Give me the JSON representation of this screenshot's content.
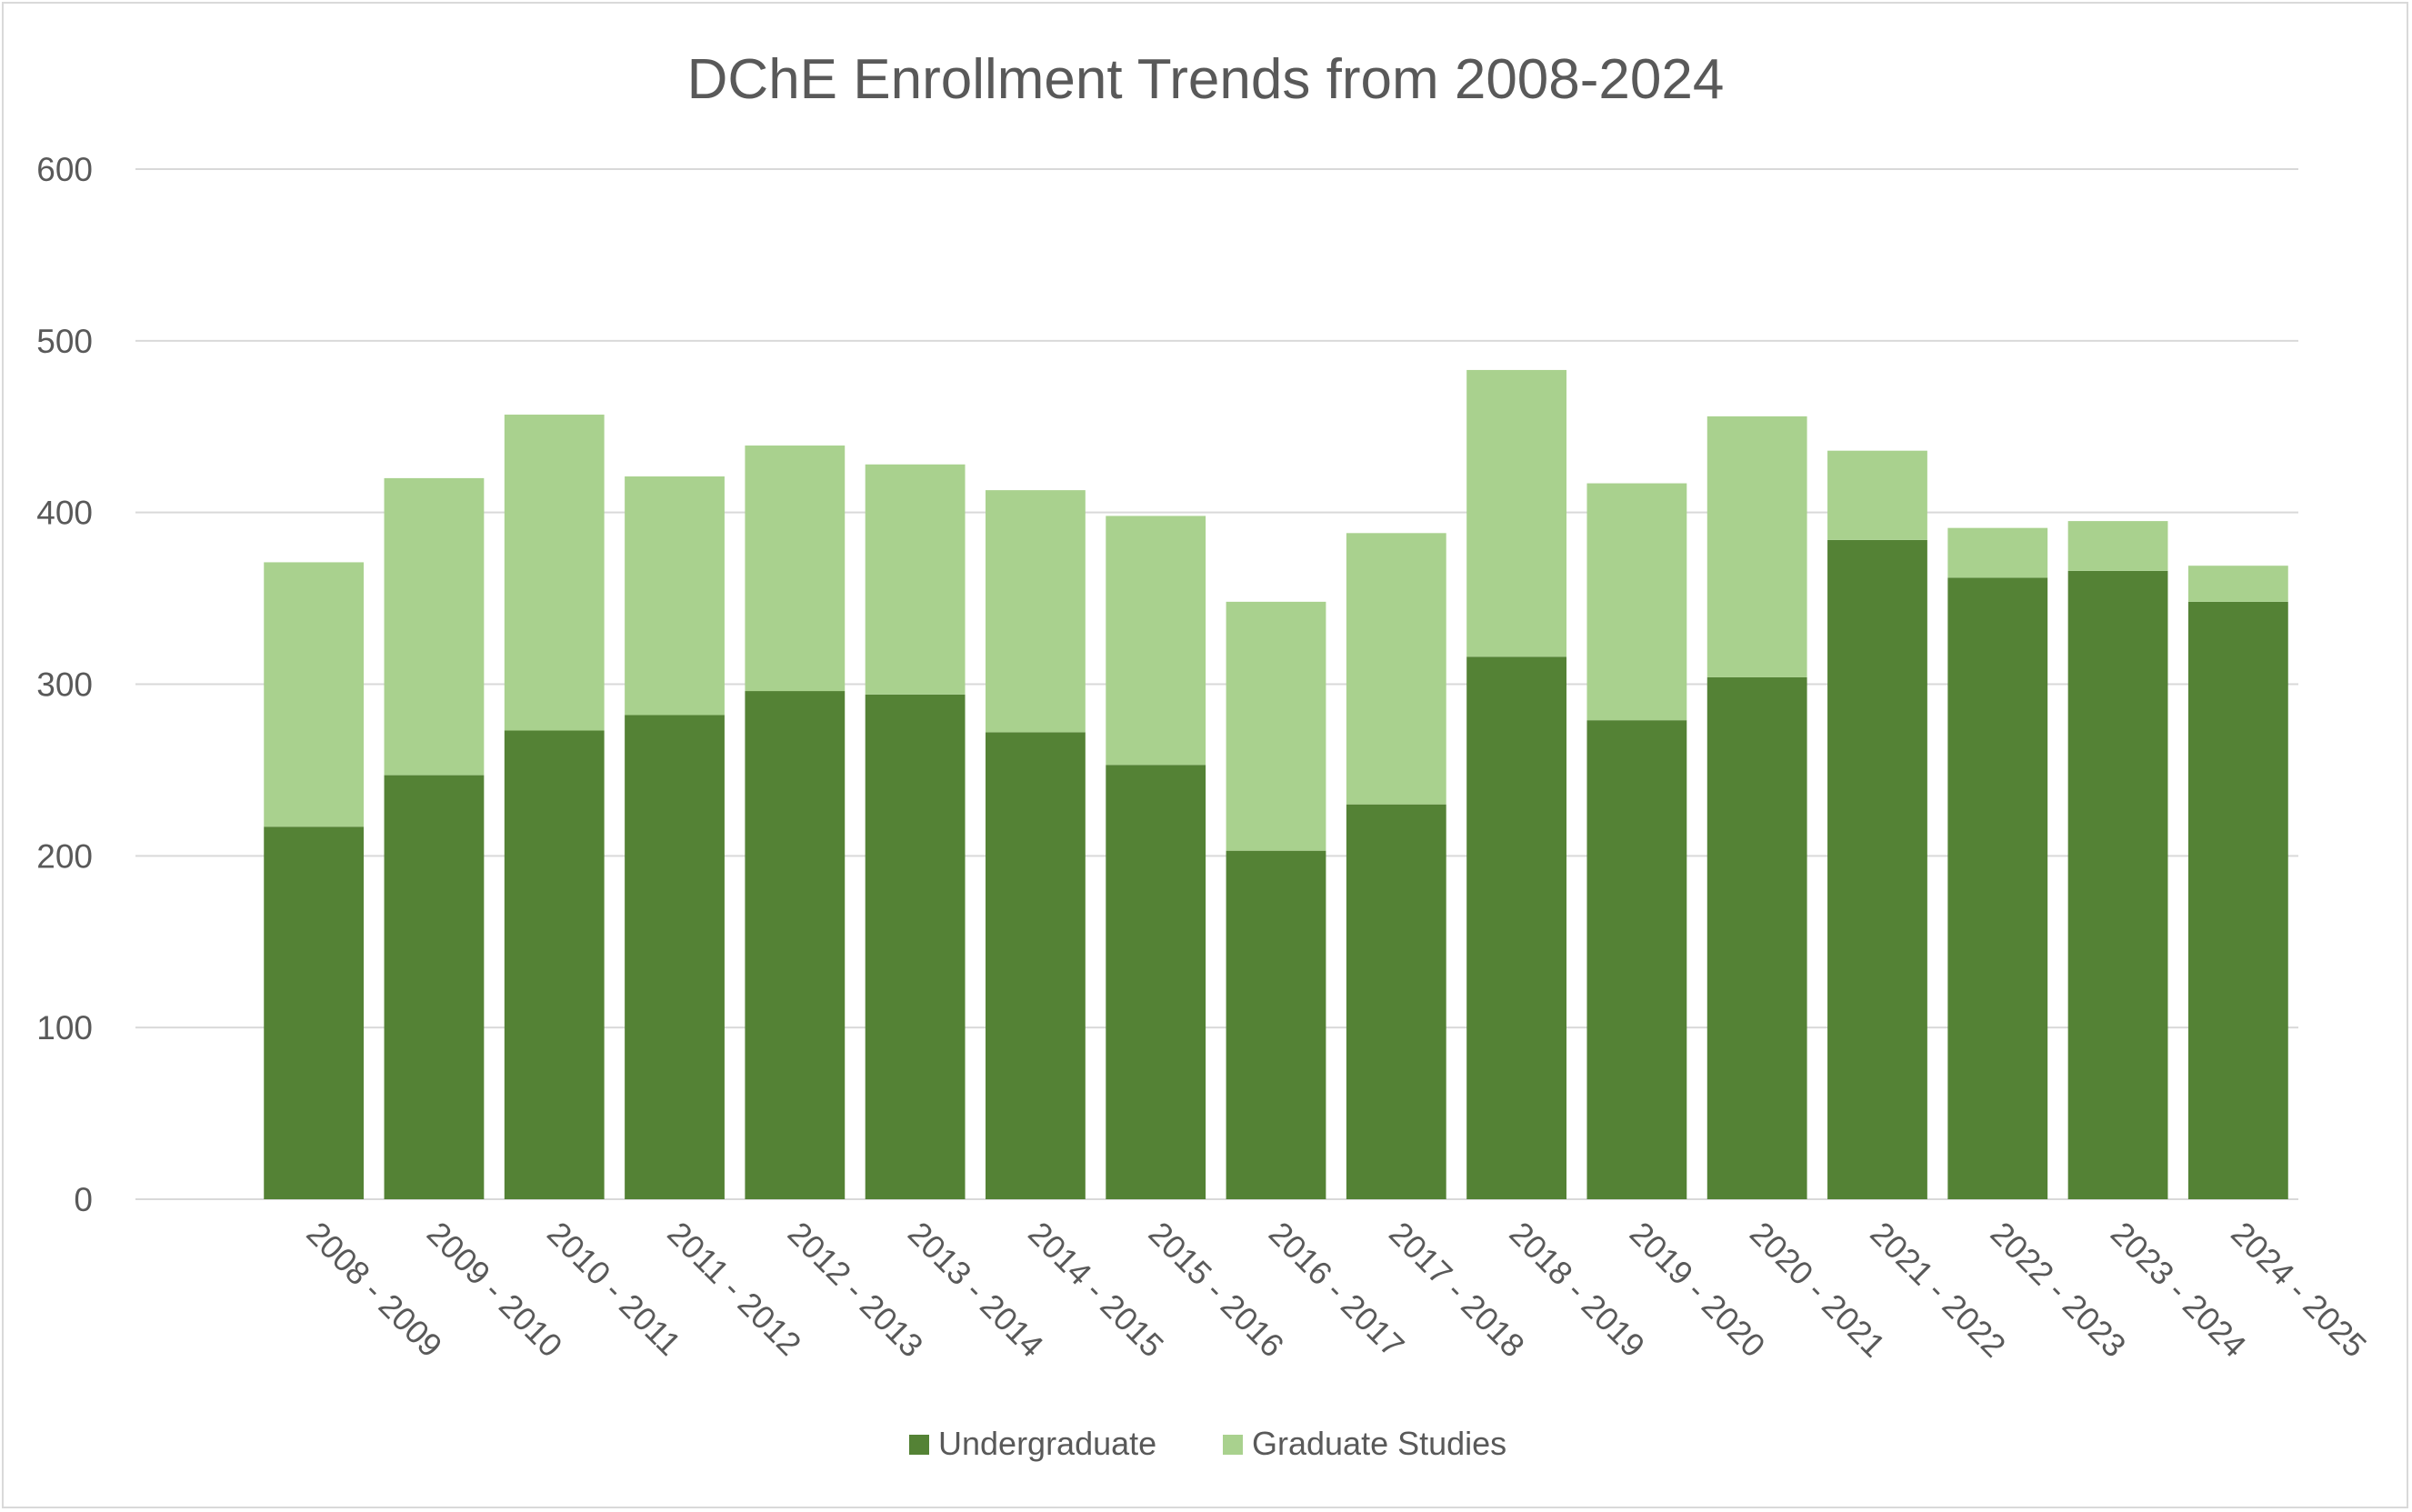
{
  "chart_data": {
    "type": "bar",
    "stacked": true,
    "title": "DChE Enrollment Trends from 2008-2024",
    "xlabel": "",
    "ylabel": "",
    "ylim": [
      0,
      600
    ],
    "yticks": [
      0,
      100,
      200,
      300,
      400,
      500,
      600
    ],
    "grid": true,
    "legend_position": "bottom",
    "categories": [
      "2008 - 2009",
      "2009 - 2010",
      "2010 - 2011",
      "2011 - 2012",
      "2012 - 2013",
      "2013 - 2014",
      "2014 - 2015",
      "2015 - 2016",
      "2016 - 2017",
      "2017 - 2018",
      "2018 - 2019",
      "2019 - 2020",
      "2020 - 2021",
      "2021 - 2022",
      "2022 - 2023",
      "2023 - 2024",
      "2024 - 2025"
    ],
    "series": [
      {
        "name": "Undergraduate",
        "color": "#548235",
        "values": [
          217,
          247,
          273,
          282,
          296,
          294,
          272,
          253,
          203,
          230,
          316,
          279,
          304,
          384,
          362,
          366,
          348
        ]
      },
      {
        "name": "Graduate Studies",
        "color": "#a9d18e",
        "values": [
          154,
          173,
          184,
          139,
          143,
          134,
          141,
          145,
          145,
          158,
          167,
          138,
          152,
          52,
          29,
          29,
          21
        ]
      }
    ]
  }
}
